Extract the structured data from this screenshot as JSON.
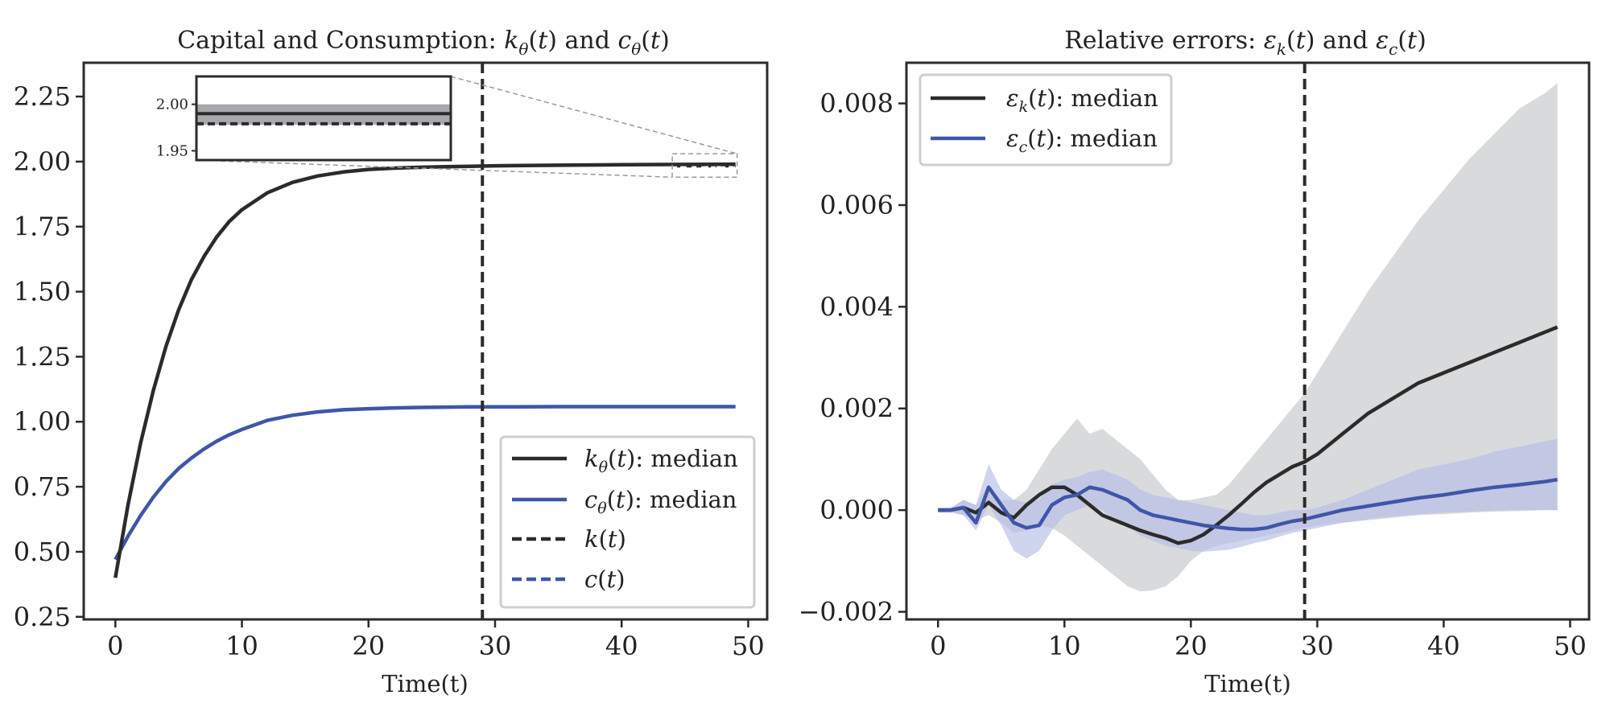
{
  "colors": {
    "k_line": "#2b2b2b",
    "c_line": "#3f56a8",
    "k_band": "#d2d3d6",
    "c_band": "#b6bde6",
    "vline": "#2b2b2b"
  },
  "chart_data": [
    {
      "type": "line",
      "title": "Capital and Consumption: kθ(t) and cθ(t)",
      "xlabel": "Time(t)",
      "ylabel": "",
      "xlim": [
        -2.5,
        51.5
      ],
      "ylim": [
        0.24,
        2.38
      ],
      "xticks": [
        0,
        10,
        20,
        30,
        40,
        50
      ],
      "yticks": [
        0.25,
        0.5,
        0.75,
        1.0,
        1.25,
        1.5,
        1.75,
        2.0,
        2.25
      ],
      "ytick_labels": [
        "0.25",
        "0.50",
        "0.75",
        "1.00",
        "1.25",
        "1.50",
        "1.75",
        "2.00",
        "2.25"
      ],
      "vline_x": 29,
      "legend_position": "lower-right",
      "legend": [
        {
          "label": "kθ(t): median",
          "style": "solid",
          "series": "k_median"
        },
        {
          "label": "cθ(t): median",
          "style": "solid",
          "series": "c_median"
        },
        {
          "label": "k(t)",
          "style": "dashed",
          "series": "k_true"
        },
        {
          "label": "c(t)",
          "style": "dashed",
          "series": "c_true"
        }
      ],
      "series": [
        {
          "name": "kθ(t): median",
          "x": [
            0,
            1,
            2,
            3,
            4,
            5,
            6,
            7,
            8,
            9,
            10,
            12,
            14,
            16,
            18,
            20,
            22,
            24,
            26,
            28,
            30,
            35,
            40,
            45,
            49
          ],
          "y": [
            0.4,
            0.68,
            0.92,
            1.12,
            1.29,
            1.43,
            1.545,
            1.635,
            1.71,
            1.77,
            1.815,
            1.88,
            1.92,
            1.945,
            1.96,
            1.97,
            1.975,
            1.978,
            1.98,
            1.982,
            1.984,
            1.986,
            1.988,
            1.989,
            1.99
          ]
        },
        {
          "name": "cθ(t): median",
          "x": [
            0,
            1,
            2,
            3,
            4,
            5,
            6,
            7,
            8,
            9,
            10,
            12,
            14,
            16,
            18,
            20,
            22,
            24,
            26,
            28,
            30,
            35,
            40,
            45,
            49
          ],
          "y": [
            0.47,
            0.56,
            0.64,
            0.71,
            0.77,
            0.82,
            0.86,
            0.895,
            0.925,
            0.95,
            0.97,
            1.005,
            1.025,
            1.038,
            1.046,
            1.05,
            1.053,
            1.055,
            1.056,
            1.057,
            1.057,
            1.058,
            1.058,
            1.058,
            1.058
          ]
        },
        {
          "name": "k(t)",
          "x": [
            44,
            49
          ],
          "y": [
            1.982,
            1.982
          ]
        },
        {
          "name": "c(t)",
          "x": [
            44,
            49
          ],
          "y": [
            1.979,
            1.979
          ]
        }
      ],
      "inset": {
        "xlim": [
          44,
          49
        ],
        "ylim": [
          1.94,
          2.03
        ],
        "yticks": [
          1.95,
          2.0
        ],
        "ytick_labels": [
          "1.95",
          "2.00"
        ],
        "band": [
          1.978,
          2.0
        ],
        "k_median": 1.99,
        "k_true": 1.982,
        "c_true": 1.979
      }
    },
    {
      "type": "line",
      "title": "Relative errors: εk(t) and εc(t)",
      "xlabel": "Time(t)",
      "ylabel": "",
      "xlim": [
        -2.5,
        51.5
      ],
      "ylim": [
        -0.00215,
        0.0088
      ],
      "xticks": [
        0,
        10,
        20,
        30,
        40,
        50
      ],
      "yticks": [
        -0.002,
        0.0,
        0.002,
        0.004,
        0.006,
        0.008
      ],
      "ytick_labels": [
        "−0.002",
        "0.000",
        "0.002",
        "0.004",
        "0.006",
        "0.008"
      ],
      "vline_x": 29,
      "legend_position": "top-left",
      "legend": [
        {
          "label": "εk(t): median",
          "style": "solid",
          "series": "ek"
        },
        {
          "label": "εc(t): median",
          "style": "solid",
          "series": "ec"
        }
      ],
      "series": [
        {
          "name": "εk(t): median",
          "x": [
            0,
            1,
            2,
            3,
            4,
            5,
            6,
            7,
            8,
            9,
            10,
            11,
            12,
            13,
            14,
            15,
            16,
            17,
            18,
            19,
            20,
            21,
            22,
            23,
            24,
            25,
            26,
            27,
            28,
            29,
            30,
            32,
            34,
            36,
            38,
            40,
            42,
            44,
            46,
            48,
            49
          ],
          "y": [
            0.0,
            0.0,
            5e-05,
            -5e-05,
            0.00015,
            -5e-05,
            -0.00015,
            0.0001,
            0.0003,
            0.00045,
            0.00045,
            0.0003,
            0.0001,
            -0.0001,
            -0.0002,
            -0.0003,
            -0.0004,
            -0.00048,
            -0.00055,
            -0.00065,
            -0.0006,
            -0.00048,
            -0.0003,
            -0.0001,
            0.00012,
            0.00035,
            0.00055,
            0.0007,
            0.00085,
            0.00095,
            0.0011,
            0.0015,
            0.0019,
            0.0022,
            0.0025,
            0.0027,
            0.0029,
            0.0031,
            0.0033,
            0.0035,
            0.0036
          ]
        },
        {
          "name": "εc(t): median",
          "x": [
            0,
            1,
            2,
            3,
            4,
            5,
            6,
            7,
            8,
            9,
            10,
            11,
            12,
            13,
            14,
            15,
            16,
            17,
            18,
            19,
            20,
            21,
            22,
            23,
            24,
            25,
            26,
            27,
            28,
            29,
            30,
            32,
            34,
            36,
            38,
            40,
            42,
            44,
            46,
            48,
            49
          ],
          "y": [
            0.0,
            0.0,
            5e-05,
            -0.00025,
            0.00045,
            0.0001,
            -0.00025,
            -0.00035,
            -0.0003,
            0.0001,
            0.00025,
            0.0003,
            0.00045,
            0.0004,
            0.0003,
            0.0002,
            0.0,
            -0.0001,
            -0.00015,
            -0.0002,
            -0.00025,
            -0.0003,
            -0.00033,
            -0.00036,
            -0.00038,
            -0.00038,
            -0.00035,
            -0.00028,
            -0.00022,
            -0.00018,
            -0.00012,
            0.0,
            8e-05,
            0.00016,
            0.00024,
            0.0003,
            0.00038,
            0.00045,
            0.0005,
            0.00056,
            0.0006
          ]
        }
      ],
      "bands": [
        {
          "series": "εk(t): median",
          "x": [
            0,
            1,
            2,
            3,
            4,
            5,
            6,
            7,
            8,
            9,
            10,
            11,
            12,
            13,
            14,
            15,
            16,
            17,
            18,
            19,
            20,
            21,
            22,
            23,
            24,
            25,
            26,
            27,
            28,
            29,
            30,
            32,
            34,
            36,
            38,
            40,
            42,
            44,
            46,
            48,
            49
          ],
          "lo": [
            -5e-05,
            -5e-05,
            -0.0001,
            -0.0002,
            -0.0001,
            -0.00025,
            -0.00045,
            -0.0004,
            -0.0003,
            -0.00035,
            -0.0005,
            -0.0007,
            -0.0009,
            -0.0011,
            -0.0013,
            -0.0015,
            -0.0016,
            -0.00158,
            -0.0015,
            -0.0013,
            -0.001,
            -0.0008,
            -0.0007,
            -0.00065,
            -0.0006,
            -0.00055,
            -0.0005,
            -0.00045,
            -0.0004,
            -0.00035,
            -0.0003,
            -0.00025,
            -0.0002,
            -0.00015,
            -0.0001,
            -8e-05,
            -5e-05,
            -3e-05,
            -2e-05,
            0.0,
            0.0
          ],
          "hi": [
            5e-05,
            5e-05,
            0.0002,
            0.0001,
            0.0005,
            0.0002,
            0.0002,
            0.0004,
            0.0008,
            0.0012,
            0.0015,
            0.0018,
            0.0015,
            0.0016,
            0.0014,
            0.0012,
            0.001,
            0.0007,
            0.0004,
            0.0002,
            0.0002,
            0.00025,
            0.0003,
            0.0005,
            0.0008,
            0.0011,
            0.0014,
            0.0017,
            0.002,
            0.0023,
            0.0027,
            0.0035,
            0.0043,
            0.005,
            0.0057,
            0.0063,
            0.0069,
            0.0074,
            0.0079,
            0.0082,
            0.0084
          ]
        },
        {
          "series": "εc(t): median",
          "x": [
            0,
            1,
            2,
            3,
            4,
            5,
            6,
            7,
            8,
            9,
            10,
            11,
            12,
            13,
            14,
            15,
            16,
            17,
            18,
            19,
            20,
            21,
            22,
            23,
            24,
            25,
            26,
            27,
            28,
            29,
            30,
            32,
            34,
            36,
            38,
            40,
            42,
            44,
            46,
            48,
            49
          ],
          "lo": [
            -3e-05,
            -3e-05,
            -0.0001,
            -0.0004,
            0.0001,
            -0.0003,
            -0.0008,
            -0.00095,
            -0.0008,
            -0.0004,
            -0.0001,
            0.0,
            0.0001,
            0.0,
            -0.0002,
            -0.0003,
            -0.0005,
            -0.0006,
            -0.0007,
            -0.00075,
            -0.0008,
            -0.00082,
            -0.0008,
            -0.00078,
            -0.00072,
            -0.00065,
            -0.0006,
            -0.00052,
            -0.00045,
            -0.0004,
            -0.00035,
            -0.00025,
            -0.00018,
            -0.00012,
            -8e-05,
            -5e-05,
            -3e-05,
            -1e-05,
            0.0,
            0.0,
            0.0
          ],
          "hi": [
            3e-05,
            3e-05,
            0.0002,
            0.0001,
            0.0009,
            0.0004,
            0.0002,
            0.00015,
            0.0002,
            0.0005,
            0.0006,
            0.00065,
            0.00075,
            0.0008,
            0.0007,
            0.0006,
            0.0004,
            0.0003,
            0.00025,
            0.0002,
            0.00015,
            0.0001,
            5e-05,
            0.0,
            -5e-05,
            -0.0001,
            -0.0001,
            -5e-05,
            0.0,
            0.0,
            5e-05,
            0.0002,
            0.0004,
            0.0006,
            0.0008,
            0.0009,
            0.001,
            0.00115,
            0.00125,
            0.00135,
            0.0014
          ]
        }
      ]
    }
  ]
}
